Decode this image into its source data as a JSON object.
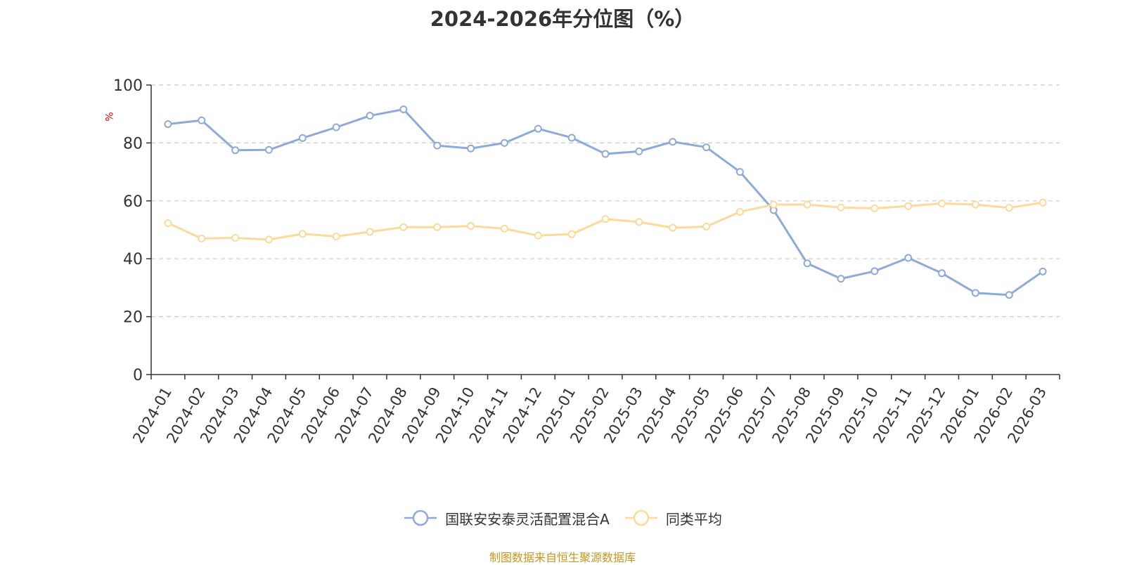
{
  "chart_data": {
    "type": "line",
    "title": "2024-2026年分位图（%）",
    "ylabel": "%",
    "ylim": [
      0,
      100
    ],
    "yticks": [
      "0",
      "20",
      "40",
      "60",
      "80",
      "100"
    ],
    "grid": true,
    "legend_position": "bottom",
    "categories": [
      "2024-01",
      "2024-02",
      "2024-03",
      "2024-04",
      "2024-05",
      "2024-06",
      "2024-07",
      "2024-08",
      "2024-09",
      "2024-10",
      "2024-11",
      "2024-12",
      "2025-01",
      "2025-02",
      "2025-03",
      "2025-04",
      "2025-05",
      "2025-06",
      "2025-07",
      "2025-08",
      "2025-09",
      "2025-10",
      "2025-11",
      "2025-12",
      "2026-01",
      "2026-02",
      "2026-03"
    ],
    "series": [
      {
        "name": "国联安安泰灵活配置混合A",
        "color": "#8eaadb",
        "values": [
          86.5,
          87.8,
          77.5,
          77.6,
          81.7,
          85.4,
          89.4,
          91.6,
          79.1,
          78.1,
          80.0,
          84.9,
          81.8,
          76.2,
          77.1,
          80.4,
          78.5,
          70.0,
          56.8,
          38.4,
          33.1,
          35.7,
          40.3,
          35.0,
          28.2,
          27.5,
          35.6
        ]
      },
      {
        "name": "同类平均",
        "color": "#fdd99a",
        "values": [
          52.3,
          47.0,
          47.2,
          46.6,
          48.6,
          47.7,
          49.3,
          50.9,
          50.9,
          51.3,
          50.4,
          48.0,
          48.5,
          53.7,
          52.7,
          50.7,
          51.1,
          56.2,
          58.7,
          58.7,
          57.7,
          57.4,
          58.2,
          59.1,
          58.7,
          57.6,
          59.4
        ]
      }
    ]
  },
  "source_text": "制图数据来自恒生聚源数据库"
}
